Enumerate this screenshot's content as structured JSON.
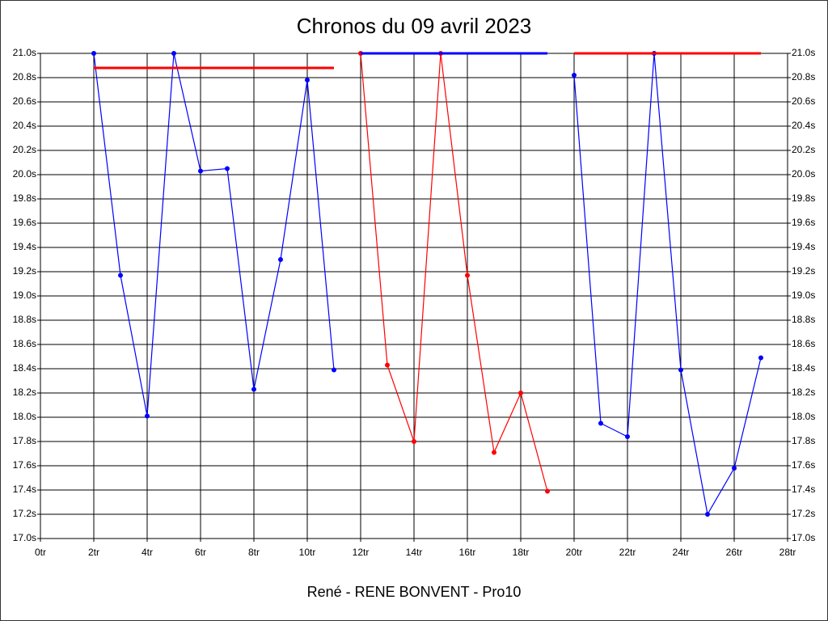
{
  "chart_data": {
    "type": "line",
    "title": "Chronos du 09 avril 2023",
    "xlabel": "René - RENE BONVENT - Pro10",
    "xlim": [
      0,
      28
    ],
    "xticks": [
      {
        "value": 0,
        "label": "0tr"
      },
      {
        "value": 2,
        "label": "2tr"
      },
      {
        "value": 4,
        "label": "4tr"
      },
      {
        "value": 6,
        "label": "6tr"
      },
      {
        "value": 8,
        "label": "8tr"
      },
      {
        "value": 10,
        "label": "10tr"
      },
      {
        "value": 12,
        "label": "12tr"
      },
      {
        "value": 14,
        "label": "14tr"
      },
      {
        "value": 16,
        "label": "16tr"
      },
      {
        "value": 18,
        "label": "18tr"
      },
      {
        "value": 20,
        "label": "20tr"
      },
      {
        "value": 22,
        "label": "22tr"
      },
      {
        "value": 24,
        "label": "24tr"
      },
      {
        "value": 26,
        "label": "26tr"
      },
      {
        "value": 28,
        "label": "28tr"
      }
    ],
    "ylim": [
      17.0,
      21.0
    ],
    "yticks": [
      {
        "value": 17.0,
        "label": "17.0s"
      },
      {
        "value": 17.2,
        "label": "17.2s"
      },
      {
        "value": 17.4,
        "label": "17.4s"
      },
      {
        "value": 17.6,
        "label": "17.6s"
      },
      {
        "value": 17.8,
        "label": "17.8s"
      },
      {
        "value": 18.0,
        "label": "18.0s"
      },
      {
        "value": 18.2,
        "label": "18.2s"
      },
      {
        "value": 18.4,
        "label": "18.4s"
      },
      {
        "value": 18.6,
        "label": "18.6s"
      },
      {
        "value": 18.8,
        "label": "18.8s"
      },
      {
        "value": 19.0,
        "label": "19.0s"
      },
      {
        "value": 19.2,
        "label": "19.2s"
      },
      {
        "value": 19.4,
        "label": "19.4s"
      },
      {
        "value": 19.6,
        "label": "19.6s"
      },
      {
        "value": 19.8,
        "label": "19.8s"
      },
      {
        "value": 20.0,
        "label": "20.0s"
      },
      {
        "value": 20.2,
        "label": "20.2s"
      },
      {
        "value": 20.4,
        "label": "20.4s"
      },
      {
        "value": 20.6,
        "label": "20.6s"
      },
      {
        "value": 20.8,
        "label": "20.8s"
      },
      {
        "value": 21.0,
        "label": "21.0s"
      }
    ],
    "grid": true,
    "series": [
      {
        "color": "#0000ff",
        "markers": true,
        "x": [
          2,
          3,
          4,
          5,
          6,
          7,
          8,
          9,
          10,
          11
        ],
        "values": [
          21.0,
          19.17,
          18.01,
          21.0,
          20.03,
          20.05,
          18.23,
          19.3,
          20.78,
          18.39
        ]
      },
      {
        "color": "#ff0000",
        "markers": true,
        "x": [
          12,
          13,
          14,
          15,
          16,
          17,
          18,
          19
        ],
        "values": [
          21.0,
          18.43,
          17.8,
          21.0,
          19.17,
          17.71,
          18.2,
          17.39
        ]
      },
      {
        "color": "#0000ff",
        "markers": true,
        "x": [
          20,
          21,
          22,
          23,
          24,
          25,
          26,
          27
        ],
        "values": [
          20.82,
          17.95,
          17.84,
          21.0,
          18.39,
          17.2,
          17.58,
          18.49
        ]
      },
      {
        "color": "#ff0000",
        "markers": false,
        "x": [
          2,
          11
        ],
        "values": [
          20.88,
          20.88
        ]
      },
      {
        "color": "#0000ff",
        "markers": false,
        "x": [
          12,
          19
        ],
        "values": [
          21.0,
          21.0
        ]
      },
      {
        "color": "#ff0000",
        "markers": false,
        "x": [
          20,
          27
        ],
        "values": [
          21.0,
          21.0
        ]
      }
    ]
  }
}
